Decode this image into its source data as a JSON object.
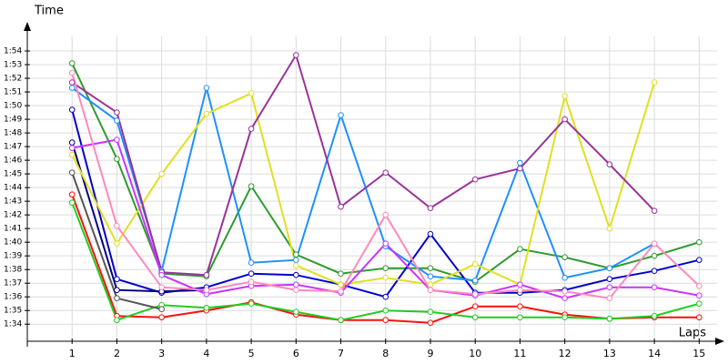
{
  "chart_data": {
    "type": "line",
    "y_label": "Time",
    "x_label": "Laps",
    "x": [
      1,
      2,
      3,
      4,
      5,
      6,
      7,
      8,
      9,
      10,
      11,
      12,
      13,
      14,
      15
    ],
    "xlim": [
      0,
      15.4
    ],
    "xticks": [
      1,
      2,
      3,
      4,
      5,
      6,
      7,
      8,
      9,
      10,
      11,
      12,
      13,
      14,
      15
    ],
    "ylim": [
      92.75,
      116
    ],
    "yticks": [
      {
        "value": 94,
        "label": "1:34"
      },
      {
        "value": 95,
        "label": "1:35"
      },
      {
        "value": 96,
        "label": "1:36"
      },
      {
        "value": 97,
        "label": "1:37"
      },
      {
        "value": 98,
        "label": "1:38"
      },
      {
        "value": 99,
        "label": "1:39"
      },
      {
        "value": 100,
        "label": "1:40"
      },
      {
        "value": 101,
        "label": "1:41"
      },
      {
        "value": 102,
        "label": "1:42"
      },
      {
        "value": 103,
        "label": "1:43"
      },
      {
        "value": 104,
        "label": "1:44"
      },
      {
        "value": 105,
        "label": "1:45"
      },
      {
        "value": 106,
        "label": "1:46"
      },
      {
        "value": 107,
        "label": "1:47"
      },
      {
        "value": 108,
        "label": "1:48"
      },
      {
        "value": 109,
        "label": "1:49"
      },
      {
        "value": 110,
        "label": "1:50"
      },
      {
        "value": 111,
        "label": "1:51"
      },
      {
        "value": 112,
        "label": "1:52"
      },
      {
        "value": 113,
        "label": "1:53"
      },
      {
        "value": 114,
        "label": "1:54"
      }
    ],
    "grid": true,
    "series": [
      {
        "color": "#ff1010",
        "values": [
          103.5,
          94.6,
          94.5,
          95.0,
          95.6,
          94.7,
          94.3,
          94.3,
          94.1,
          95.3,
          95.3,
          94.7,
          94.4,
          94.5,
          94.5
        ]
      },
      {
        "color": "#22cc22",
        "values": [
          102.9,
          94.3,
          95.4,
          95.2,
          95.5,
          94.9,
          94.3,
          95.0,
          94.9,
          94.5,
          94.5,
          94.5,
          94.4,
          94.6,
          95.5
        ]
      },
      {
        "color": "#2e9b2e",
        "values": [
          113.1,
          106.1,
          97.7,
          97.5,
          104.1,
          99.1,
          97.7,
          98.1,
          98.1,
          97.1,
          99.5,
          98.9,
          98.1,
          99.0,
          100.0
        ]
      },
      {
        "color": "#0000cc",
        "values": [
          109.7,
          97.3,
          96.3,
          96.7,
          97.7,
          97.6,
          96.9,
          96.0,
          100.6,
          96.3,
          96.3,
          96.5,
          97.3,
          97.9,
          98.7
        ]
      },
      {
        "color": "#000080",
        "values": [
          107.3,
          96.5,
          96.4,
          96.5,
          null,
          null,
          null,
          null,
          null,
          null,
          null,
          null,
          null,
          null,
          null
        ]
      },
      {
        "color": "#1e90ff",
        "values": [
          111.3,
          108.9,
          97.9,
          111.3,
          98.5,
          98.7,
          109.3,
          99.7,
          97.5,
          97.2,
          105.8,
          97.4,
          98.1,
          99.9,
          null
        ]
      },
      {
        "color": "#e0e020",
        "values": [
          106.4,
          99.9,
          105.0,
          109.4,
          110.9,
          98.3,
          96.9,
          97.4,
          96.9,
          98.4,
          96.9,
          110.7,
          101.0,
          111.7,
          null
        ]
      },
      {
        "color": "#993399",
        "values": [
          111.7,
          109.5,
          97.8,
          97.6,
          108.3,
          113.7,
          102.6,
          105.1,
          102.5,
          104.6,
          105.4,
          109.0,
          105.7,
          102.3,
          null
        ]
      },
      {
        "color": "#cc33ff",
        "values": [
          106.9,
          107.5,
          97.6,
          96.2,
          96.8,
          96.9,
          96.3,
          99.9,
          96.5,
          96.1,
          96.9,
          95.9,
          96.7,
          96.7,
          96.1
        ]
      },
      {
        "color": "#ff88bb",
        "values": [
          112.4,
          101.2,
          96.7,
          96.5,
          97.1,
          96.5,
          96.4,
          102.0,
          96.5,
          96.2,
          96.5,
          96.4,
          95.9,
          99.9,
          96.8
        ]
      },
      {
        "color": "#555555",
        "values": [
          105.1,
          95.9,
          95.1,
          null,
          null,
          null,
          null,
          null,
          null,
          null,
          null,
          null,
          null,
          null,
          null
        ]
      }
    ]
  }
}
